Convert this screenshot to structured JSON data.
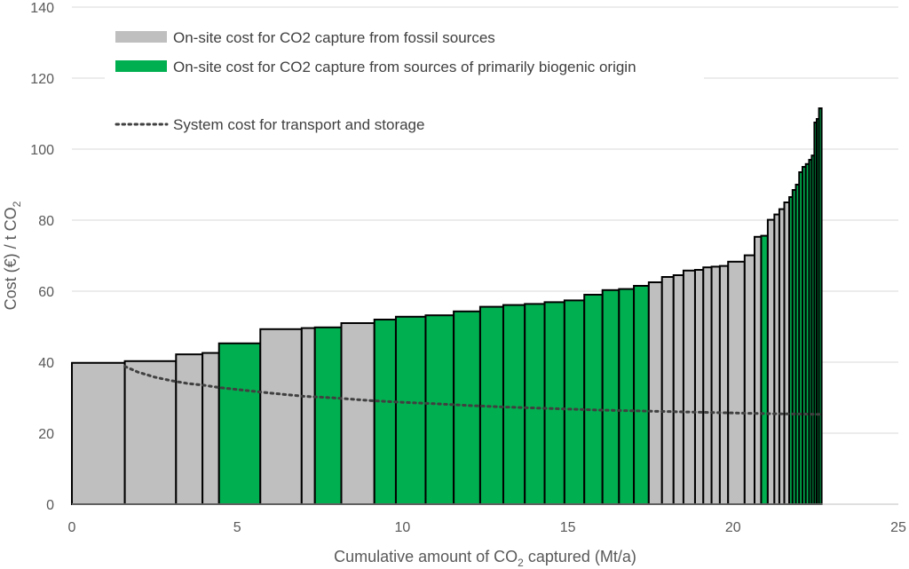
{
  "chart_data": {
    "type": "bar",
    "subtype": "cost-supply-curve",
    "x_axis": {
      "label_main": "Cumulative amount of CO",
      "label_sub": "2",
      "label_tail": " captured (Mt/a)",
      "range": [
        0,
        25
      ],
      "ticks": [
        "0",
        "5",
        "10",
        "15",
        "20",
        "25"
      ]
    },
    "y_axis": {
      "label_main": "Cost (€) / t CO",
      "label_sub": "2",
      "range": [
        0,
        140
      ],
      "ticks": [
        "0",
        "20",
        "40",
        "60",
        "80",
        "100",
        "120",
        "140"
      ]
    },
    "grid": "horizontal",
    "legend": {
      "position": "top-left",
      "entries": [
        {
          "id": "fossil",
          "label": "On-site cost for CO2 capture from fossil sources",
          "color": "#BFBFBF"
        },
        {
          "id": "bio",
          "label": "On-site cost for CO2 capture from sources of primarily biogenic origin",
          "color": "#00B050"
        },
        {
          "id": "system",
          "label": "System cost for transport and storage",
          "color": "#404040",
          "style": "dotted"
        }
      ]
    },
    "colors": {
      "fossil": "#BFBFBF",
      "bio": "#00B050",
      "outline": "#000000"
    },
    "series": [
      {
        "name": "On-site cost for CO2 capture from fossil sources / sources of primarily biogenic origin",
        "bars": [
          {
            "x0": 0.0,
            "x1": 1.6,
            "value": 39.8,
            "source": "fossil"
          },
          {
            "x0": 1.6,
            "x1": 3.15,
            "value": 40.3,
            "source": "fossil"
          },
          {
            "x0": 3.15,
            "x1": 3.95,
            "value": 42.2,
            "source": "fossil"
          },
          {
            "x0": 3.95,
            "x1": 4.45,
            "value": 42.6,
            "source": "fossil"
          },
          {
            "x0": 4.45,
            "x1": 5.7,
            "value": 45.3,
            "source": "bio"
          },
          {
            "x0": 5.7,
            "x1": 6.95,
            "value": 49.3,
            "source": "fossil"
          },
          {
            "x0": 6.95,
            "x1": 7.35,
            "value": 49.6,
            "source": "fossil"
          },
          {
            "x0": 7.35,
            "x1": 8.15,
            "value": 49.8,
            "source": "bio"
          },
          {
            "x0": 8.15,
            "x1": 9.15,
            "value": 51.0,
            "source": "fossil"
          },
          {
            "x0": 9.15,
            "x1": 9.8,
            "value": 52.0,
            "source": "bio"
          },
          {
            "x0": 9.8,
            "x1": 10.7,
            "value": 52.8,
            "source": "bio"
          },
          {
            "x0": 10.7,
            "x1": 11.55,
            "value": 53.2,
            "source": "bio"
          },
          {
            "x0": 11.55,
            "x1": 12.35,
            "value": 54.3,
            "source": "bio"
          },
          {
            "x0": 12.35,
            "x1": 13.05,
            "value": 55.6,
            "source": "bio"
          },
          {
            "x0": 13.05,
            "x1": 13.7,
            "value": 56.1,
            "source": "bio"
          },
          {
            "x0": 13.7,
            "x1": 14.3,
            "value": 56.4,
            "source": "bio"
          },
          {
            "x0": 14.3,
            "x1": 14.9,
            "value": 56.9,
            "source": "bio"
          },
          {
            "x0": 14.9,
            "x1": 15.5,
            "value": 57.4,
            "source": "bio"
          },
          {
            "x0": 15.5,
            "x1": 16.05,
            "value": 59.0,
            "source": "bio"
          },
          {
            "x0": 16.05,
            "x1": 16.55,
            "value": 60.3,
            "source": "bio"
          },
          {
            "x0": 16.55,
            "x1": 17.0,
            "value": 60.6,
            "source": "bio"
          },
          {
            "x0": 17.0,
            "x1": 17.45,
            "value": 61.5,
            "source": "bio"
          },
          {
            "x0": 17.45,
            "x1": 17.85,
            "value": 62.5,
            "source": "fossil"
          },
          {
            "x0": 17.85,
            "x1": 18.2,
            "value": 64.0,
            "source": "fossil"
          },
          {
            "x0": 18.2,
            "x1": 18.5,
            "value": 64.5,
            "source": "fossil"
          },
          {
            "x0": 18.5,
            "x1": 18.85,
            "value": 65.8,
            "source": "fossil"
          },
          {
            "x0": 18.85,
            "x1": 19.1,
            "value": 66.0,
            "source": "fossil"
          },
          {
            "x0": 19.1,
            "x1": 19.35,
            "value": 66.7,
            "source": "fossil"
          },
          {
            "x0": 19.35,
            "x1": 19.6,
            "value": 66.9,
            "source": "fossil"
          },
          {
            "x0": 19.6,
            "x1": 19.85,
            "value": 67.1,
            "source": "fossil"
          },
          {
            "x0": 19.85,
            "x1": 20.35,
            "value": 68.3,
            "source": "fossil"
          },
          {
            "x0": 20.35,
            "x1": 20.65,
            "value": 70.1,
            "source": "fossil"
          },
          {
            "x0": 20.65,
            "x1": 20.85,
            "value": 75.3,
            "source": "fossil"
          },
          {
            "x0": 20.85,
            "x1": 21.05,
            "value": 75.6,
            "source": "bio"
          },
          {
            "x0": 21.05,
            "x1": 21.25,
            "value": 80.1,
            "source": "fossil"
          },
          {
            "x0": 21.25,
            "x1": 21.4,
            "value": 81.6,
            "source": "fossil"
          },
          {
            "x0": 21.4,
            "x1": 21.55,
            "value": 83.1,
            "source": "fossil"
          },
          {
            "x0": 21.55,
            "x1": 21.7,
            "value": 85.0,
            "source": "fossil"
          },
          {
            "x0": 21.7,
            "x1": 21.8,
            "value": 86.5,
            "source": "bio"
          },
          {
            "x0": 21.8,
            "x1": 21.9,
            "value": 88.5,
            "source": "bio"
          },
          {
            "x0": 21.9,
            "x1": 22.0,
            "value": 90.0,
            "source": "bio"
          },
          {
            "x0": 22.0,
            "x1": 22.1,
            "value": 93.5,
            "source": "bio"
          },
          {
            "x0": 22.1,
            "x1": 22.2,
            "value": 95.0,
            "source": "bio"
          },
          {
            "x0": 22.2,
            "x1": 22.3,
            "value": 95.8,
            "source": "bio"
          },
          {
            "x0": 22.3,
            "x1": 22.38,
            "value": 97.0,
            "source": "bio"
          },
          {
            "x0": 22.38,
            "x1": 22.46,
            "value": 98.2,
            "source": "bio"
          },
          {
            "x0": 22.46,
            "x1": 22.53,
            "value": 107.5,
            "source": "bio"
          },
          {
            "x0": 22.53,
            "x1": 22.6,
            "value": 108.5,
            "source": "bio"
          },
          {
            "x0": 22.6,
            "x1": 22.68,
            "value": 111.5,
            "source": "bio"
          }
        ]
      },
      {
        "name": "System cost for transport and storage",
        "line": {
          "x": [
            1.6,
            2.0,
            2.5,
            3.0,
            3.5,
            4.0,
            4.5,
            5.0,
            6.0,
            7.0,
            8.0,
            9.0,
            10.0,
            11.0,
            12.0,
            13.0,
            14.0,
            15.0,
            16.0,
            17.0,
            18.0,
            19.0,
            20.0,
            21.0,
            22.0,
            22.7
          ],
          "y": [
            38.8,
            37.2,
            35.8,
            34.8,
            34.0,
            33.5,
            32.8,
            32.3,
            31.3,
            30.4,
            29.9,
            29.2,
            28.7,
            28.3,
            27.8,
            27.4,
            27.1,
            26.8,
            26.5,
            26.3,
            26.1,
            25.9,
            25.7,
            25.5,
            25.4,
            25.3
          ]
        }
      }
    ]
  }
}
